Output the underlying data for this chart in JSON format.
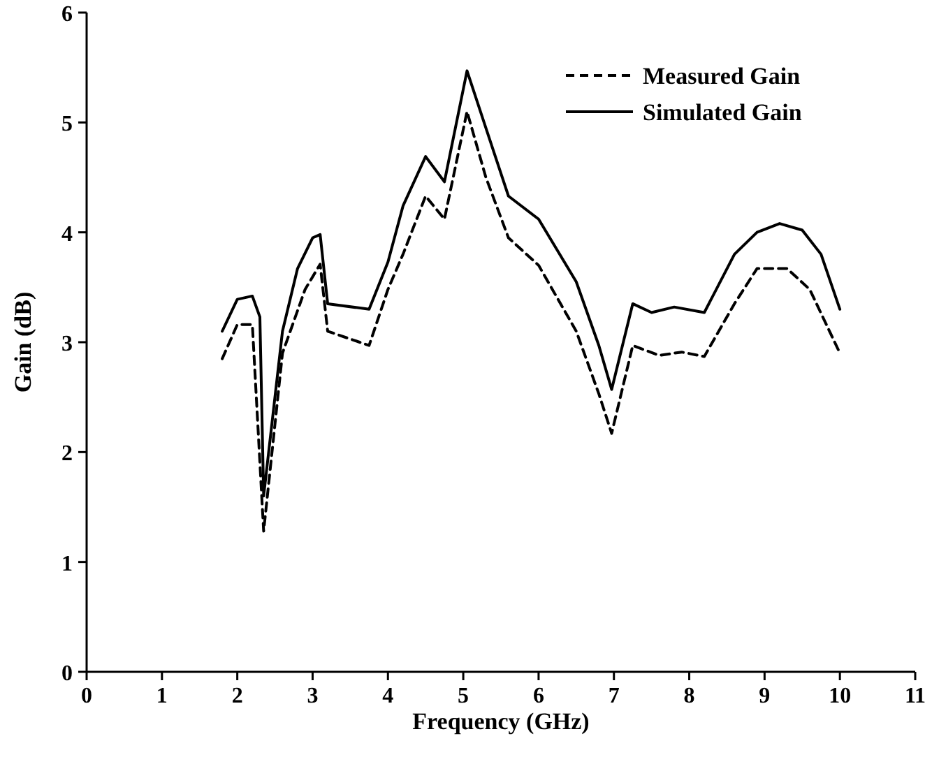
{
  "chart_data": {
    "type": "line",
    "xlabel": "Frequency (GHz)",
    "ylabel": "Gain (dB)",
    "xlim": [
      0,
      11
    ],
    "xticks": [
      0,
      1,
      2,
      3,
      4,
      5,
      6,
      7,
      8,
      9,
      10,
      11
    ],
    "ylim": [
      0,
      6
    ],
    "yticks": [
      0,
      1,
      2,
      3,
      4,
      5,
      6
    ],
    "legend": "top right",
    "grid": false,
    "marker": "none",
    "series": [
      {
        "name": "Measured Gain",
        "color": "#000000",
        "line_style": "dashed",
        "x": [
          1.8,
          2.0,
          2.2,
          2.35,
          2.6,
          2.9,
          3.1,
          3.2,
          3.75,
          4.0,
          4.2,
          4.5,
          4.75,
          5.05,
          5.3,
          5.6,
          6.0,
          6.5,
          6.8,
          6.97,
          7.25,
          7.6,
          7.9,
          8.2,
          8.6,
          8.9,
          9.3,
          9.6,
          10.0
        ],
        "values": [
          2.85,
          3.16,
          3.16,
          1.28,
          2.9,
          3.48,
          3.71,
          3.1,
          2.97,
          3.48,
          3.8,
          4.33,
          4.12,
          5.1,
          4.5,
          3.95,
          3.7,
          3.1,
          2.53,
          2.17,
          2.97,
          2.88,
          2.91,
          2.87,
          3.35,
          3.67,
          3.67,
          3.48,
          2.9
        ]
      },
      {
        "name": "Simulated Gain",
        "color": "#000000",
        "line_style": "solid",
        "x": [
          1.8,
          2.0,
          2.2,
          2.3,
          2.35,
          2.6,
          2.8,
          3.0,
          3.1,
          3.2,
          3.75,
          4.0,
          4.2,
          4.5,
          4.75,
          5.05,
          5.3,
          5.6,
          6.0,
          6.5,
          6.8,
          6.97,
          7.25,
          7.5,
          7.8,
          8.2,
          8.6,
          8.9,
          9.2,
          9.5,
          9.75,
          10.0
        ],
        "values": [
          3.1,
          3.39,
          3.42,
          3.23,
          1.6,
          3.1,
          3.67,
          3.95,
          3.98,
          3.35,
          3.3,
          3.73,
          4.24,
          4.69,
          4.46,
          5.47,
          4.95,
          4.33,
          4.12,
          3.55,
          2.97,
          2.57,
          3.35,
          3.27,
          3.32,
          3.27,
          3.8,
          4.0,
          4.08,
          4.02,
          3.8,
          3.3
        ]
      }
    ]
  }
}
